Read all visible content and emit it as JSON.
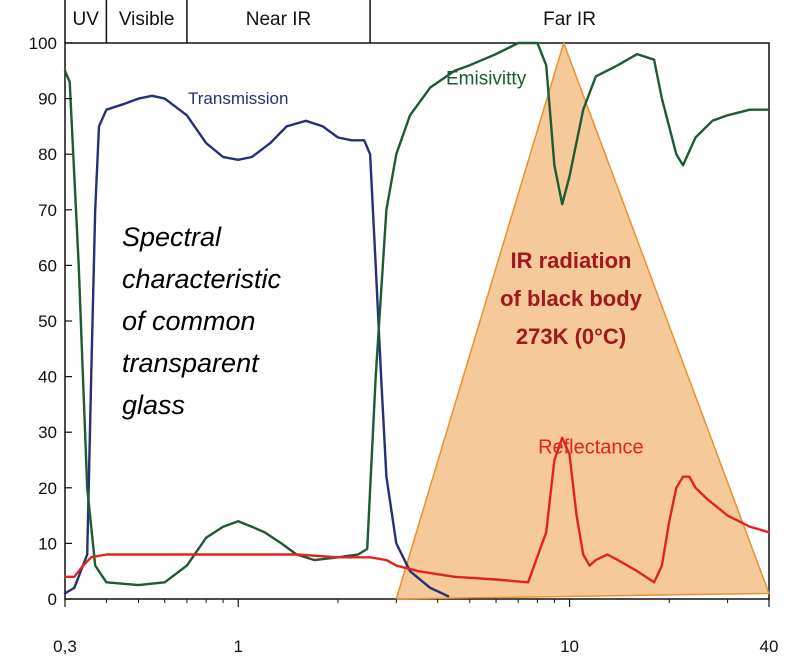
{
  "chart_data": {
    "type": "line",
    "x_scale": "log",
    "xlim": [
      0.3,
      40
    ],
    "ylim": [
      0,
      100
    ],
    "x_ticks": [
      {
        "value": 0.3,
        "label": "0,3"
      },
      {
        "value": 1,
        "label": "1"
      },
      {
        "value": 10,
        "label": "10"
      },
      {
        "value": 40,
        "label": "40"
      }
    ],
    "y_ticks": [
      0,
      10,
      20,
      30,
      40,
      50,
      60,
      70,
      80,
      90,
      100
    ],
    "bands": [
      {
        "label": "UV",
        "from": 0.3,
        "to": 0.4
      },
      {
        "label": "Visible",
        "from": 0.4,
        "to": 0.7
      },
      {
        "label": "Near IR",
        "from": 0.7,
        "to": 2.5
      },
      {
        "label": "Far IR",
        "from": 2.5,
        "to": 40
      }
    ],
    "caption": [
      "Spectral",
      "characteristic",
      "of common",
      "transparent",
      "glass"
    ],
    "black_body": {
      "label": [
        "IR radiation",
        "of black body",
        "273K (0°C)"
      ],
      "color": "#f5c08a",
      "edge_color": "#e8912e",
      "points": [
        [
          3.0,
          0
        ],
        [
          9.6,
          100
        ],
        [
          40,
          1
        ]
      ]
    },
    "series": [
      {
        "name": "Transmission",
        "color": "#26307a",
        "label_color": "#26307a",
        "label_at": [
          1.0,
          89
        ],
        "points": [
          [
            0.3,
            1
          ],
          [
            0.32,
            2
          ],
          [
            0.35,
            8
          ],
          [
            0.36,
            40
          ],
          [
            0.37,
            70
          ],
          [
            0.38,
            85
          ],
          [
            0.4,
            88
          ],
          [
            0.45,
            89
          ],
          [
            0.5,
            90
          ],
          [
            0.55,
            90.5
          ],
          [
            0.6,
            90
          ],
          [
            0.7,
            87
          ],
          [
            0.8,
            82
          ],
          [
            0.9,
            79.5
          ],
          [
            1.0,
            79
          ],
          [
            1.1,
            79.5
          ],
          [
            1.25,
            82
          ],
          [
            1.4,
            85
          ],
          [
            1.6,
            86
          ],
          [
            1.8,
            85
          ],
          [
            2.0,
            83
          ],
          [
            2.2,
            82.5
          ],
          [
            2.4,
            82.5
          ],
          [
            2.5,
            80
          ],
          [
            2.6,
            60
          ],
          [
            2.7,
            40
          ],
          [
            2.8,
            22
          ],
          [
            3.0,
            10
          ],
          [
            3.3,
            5
          ],
          [
            3.8,
            2
          ],
          [
            4.3,
            0.5
          ]
        ]
      },
      {
        "name": "Emisivitty",
        "color": "#1e5a33",
        "label_color": "#1e5a33",
        "label_at": [
          5.6,
          92.5
        ],
        "points": [
          [
            0.3,
            95
          ],
          [
            0.31,
            93
          ],
          [
            0.33,
            60
          ],
          [
            0.35,
            20
          ],
          [
            0.37,
            6
          ],
          [
            0.4,
            3
          ],
          [
            0.5,
            2.5
          ],
          [
            0.6,
            3
          ],
          [
            0.7,
            6
          ],
          [
            0.8,
            11
          ],
          [
            0.9,
            13
          ],
          [
            1.0,
            14
          ],
          [
            1.1,
            13
          ],
          [
            1.2,
            12
          ],
          [
            1.35,
            10
          ],
          [
            1.5,
            8
          ],
          [
            1.7,
            7
          ],
          [
            2.0,
            7.5
          ],
          [
            2.3,
            8
          ],
          [
            2.45,
            9
          ],
          [
            2.6,
            40
          ],
          [
            2.8,
            70
          ],
          [
            3.0,
            80
          ],
          [
            3.3,
            87
          ],
          [
            3.8,
            92
          ],
          [
            4.5,
            95
          ],
          [
            5.0,
            96
          ],
          [
            6.0,
            98
          ],
          [
            7.0,
            100
          ],
          [
            8.0,
            100
          ],
          [
            8.5,
            96
          ],
          [
            9.0,
            78
          ],
          [
            9.5,
            71
          ],
          [
            10.0,
            76
          ],
          [
            11.0,
            88
          ],
          [
            12.0,
            94
          ],
          [
            14.0,
            96
          ],
          [
            16.0,
            98
          ],
          [
            18.0,
            97
          ],
          [
            19.0,
            90
          ],
          [
            21.0,
            80
          ],
          [
            22.0,
            78
          ],
          [
            24.0,
            83
          ],
          [
            27.0,
            86
          ],
          [
            30.0,
            87
          ],
          [
            35.0,
            88
          ],
          [
            40.0,
            88
          ]
        ]
      },
      {
        "name": "Reflectance",
        "color": "#e3231e",
        "label_color": "#e3231e",
        "label_at": [
          11.6,
          26.2
        ],
        "points": [
          [
            0.3,
            4
          ],
          [
            0.32,
            4
          ],
          [
            0.34,
            6
          ],
          [
            0.36,
            7.5
          ],
          [
            0.4,
            8
          ],
          [
            0.6,
            8
          ],
          [
            1.0,
            8
          ],
          [
            1.5,
            8
          ],
          [
            2.0,
            7.5
          ],
          [
            2.5,
            7.5
          ],
          [
            2.8,
            7
          ],
          [
            3.0,
            6
          ],
          [
            3.5,
            5
          ],
          [
            4.5,
            4
          ],
          [
            6.0,
            3.5
          ],
          [
            7.5,
            3
          ],
          [
            8.5,
            12
          ],
          [
            9.0,
            25
          ],
          [
            9.5,
            29
          ],
          [
            10.0,
            26
          ],
          [
            10.5,
            15
          ],
          [
            11.0,
            8
          ],
          [
            11.5,
            6
          ],
          [
            12.0,
            7
          ],
          [
            13.0,
            8
          ],
          [
            14.0,
            7
          ],
          [
            16.0,
            5
          ],
          [
            18.0,
            3
          ],
          [
            19.0,
            6
          ],
          [
            20.0,
            14
          ],
          [
            21.0,
            20
          ],
          [
            22.0,
            22
          ],
          [
            23.0,
            22
          ],
          [
            24.0,
            20
          ],
          [
            26.0,
            18
          ],
          [
            30.0,
            15
          ],
          [
            35.0,
            13
          ],
          [
            40.0,
            12
          ]
        ]
      }
    ]
  }
}
